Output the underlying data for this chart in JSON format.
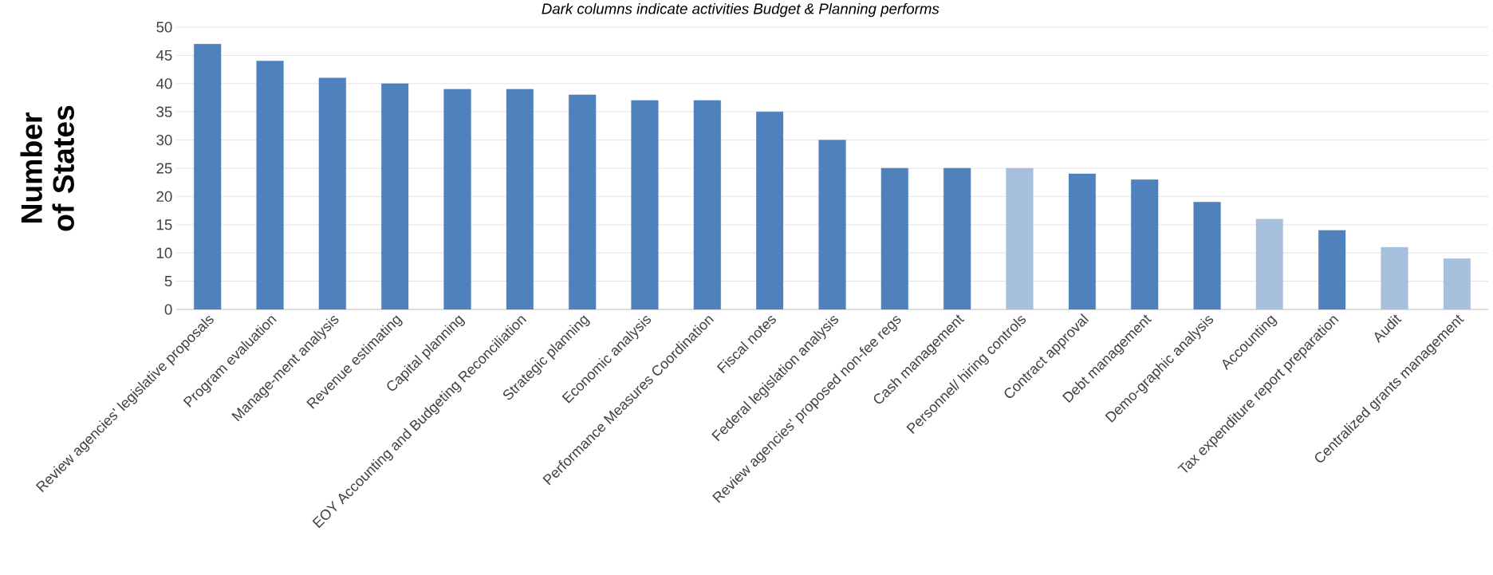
{
  "chart_data": {
    "type": "bar",
    "subtitle": "Dark columns indicate activities Budget & Planning performs",
    "ylabel": "Number of States",
    "categories": [
      "Review agencies' legislative proposals",
      "Program evaluation",
      "Manage-ment analysis",
      "Revenue estimating",
      "Capital planning",
      "EOY Accounting and Budgeting Reconciliation",
      "Strategic planning",
      "Economic analysis",
      "Performance Measures Coordination",
      "Fiscal notes",
      "Federal legislation analysis",
      "Review agencies' proposed non-fee regs",
      "Cash management",
      "Personnel/ hiring controls",
      "Contract approval",
      "Debt management",
      "Demo-graphic analysis",
      "Accounting",
      "Tax expenditure report preparation",
      "Audit",
      "Centralized grants management"
    ],
    "values": [
      47,
      44,
      41,
      40,
      39,
      39,
      38,
      37,
      37,
      35,
      30,
      25,
      25,
      25,
      24,
      23,
      19,
      16,
      14,
      11,
      9
    ],
    "colors": [
      "#4f81bd",
      "#4f81bd",
      "#4f81bd",
      "#4f81bd",
      "#4f81bd",
      "#4f81bd",
      "#4f81bd",
      "#4f81bd",
      "#4f81bd",
      "#4f81bd",
      "#4f81bd",
      "#4f81bd",
      "#4f81bd",
      "#a7c0de",
      "#4f81bd",
      "#4f81bd",
      "#4f81bd",
      "#a7c0de",
      "#4f81bd",
      "#a7c0de",
      "#a7c0de"
    ],
    "ylim": [
      0,
      50
    ],
    "yticks": [
      0,
      5,
      10,
      15,
      20,
      25,
      30,
      35,
      40,
      45,
      50
    ],
    "grid": "y"
  }
}
